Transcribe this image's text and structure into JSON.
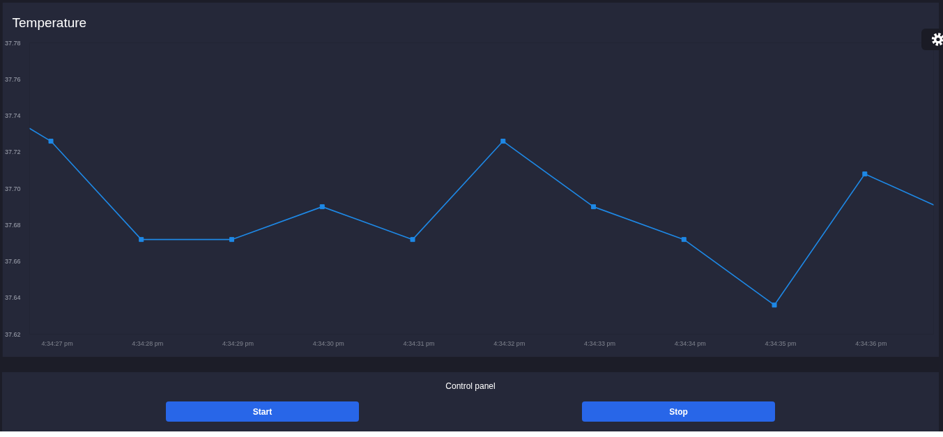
{
  "chart_data": {
    "type": "line",
    "title": "Temperature",
    "xlim": [
      16.5740819,
      16.5768586
    ],
    "ylim": [
      37.62,
      37.78
    ],
    "xticks": [
      {
        "value": 16.5741667,
        "label": "4:34:27 pm"
      },
      {
        "value": 16.5744444,
        "label": "4:34:28 pm"
      },
      {
        "value": 16.5747222,
        "label": "4:34:29 pm"
      },
      {
        "value": 16.575,
        "label": "4:34:30 pm"
      },
      {
        "value": 16.5752778,
        "label": "4:34:31 pm"
      },
      {
        "value": 16.5755556,
        "label": "4:34:32 pm"
      },
      {
        "value": 16.5758333,
        "label": "4:34:33 pm"
      },
      {
        "value": 16.5761111,
        "label": "4:34:34 pm"
      },
      {
        "value": 16.5763889,
        "label": "4:34:35 pm"
      },
      {
        "value": 16.5766667,
        "label": "4:34:36 pm"
      }
    ],
    "yticks": [
      37.62,
      37.64,
      37.66,
      37.68,
      {
        "value": 37.7,
        "label": "37.70"
      },
      37.72,
      37.74,
      37.76,
      37.78
    ],
    "marker": "square",
    "line_style": "solid",
    "series": [
      {
        "marker": "none",
        "color": "#1e88e5",
        "x": [
          16.5740819,
          16.5741473,
          16.574425,
          16.5747028,
          16.5749806,
          16.5752584,
          16.5755362,
          16.5758139,
          16.5760917,
          16.5763695,
          16.5766473,
          16.5768586
        ],
        "values": [
          37.733,
          37.726,
          37.672,
          37.672,
          37.69,
          37.672,
          37.726,
          37.69,
          37.672,
          37.636,
          37.708,
          37.691
        ]
      },
      {
        "type": "scatter",
        "color": "#1e88e5",
        "x": [
          16.5741473,
          16.574425,
          16.5747028,
          16.5749806,
          16.5752584,
          16.5755362,
          16.5758139,
          16.5760917,
          16.5763695,
          16.5766473
        ],
        "values": [
          37.726,
          37.672,
          37.672,
          37.69,
          37.672,
          37.726,
          37.69,
          37.672,
          37.636,
          37.708
        ]
      }
    ],
    "annotations": [
      "Control panel",
      "Start",
      "Stop"
    ]
  }
}
